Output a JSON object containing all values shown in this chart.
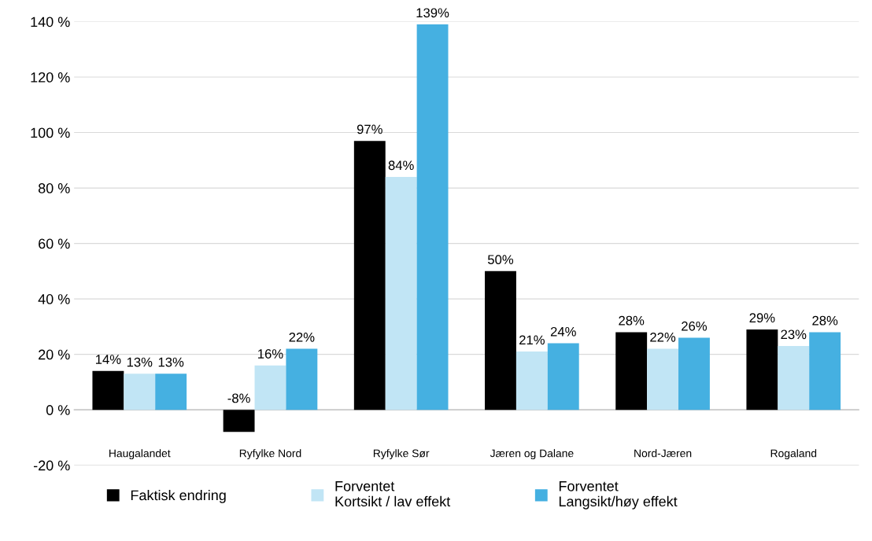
{
  "chart_data": {
    "type": "bar",
    "categories": [
      "Haugalandet",
      "Ryfylke Nord",
      "Ryfylke Sør",
      "Jæren og Dalane",
      "Nord-Jæren",
      "Rogaland"
    ],
    "series": [
      {
        "name": "Faktisk endring",
        "color": "#000000",
        "values": [
          14,
          -8,
          97,
          50,
          28,
          29
        ],
        "value_labels": [
          "14%",
          "-8%",
          "97%",
          "50%",
          "28%",
          "29%"
        ]
      },
      {
        "name": "Forventet\nKortsikt / lav effekt",
        "color": "#c1e5f5",
        "values": [
          13,
          16,
          84,
          21,
          22,
          23
        ],
        "value_labels": [
          "13%",
          "16%",
          "84%",
          "21%",
          "22%",
          "23%"
        ]
      },
      {
        "name": "Forventet\nLangsikt/høy effekt",
        "color": "#45b0e1",
        "values": [
          13,
          22,
          139,
          24,
          26,
          28
        ],
        "value_labels": [
          "13%",
          "22%",
          "139%",
          "24%",
          "26%",
          "28%"
        ]
      }
    ],
    "ylim": [
      -20,
      140
    ],
    "yticks": [
      {
        "value": -20,
        "label": "-20 %"
      },
      {
        "value": 0,
        "label": "0 %"
      },
      {
        "value": 20,
        "label": "20 %"
      },
      {
        "value": 40,
        "label": "40 %"
      },
      {
        "value": 60,
        "label": "60 %"
      },
      {
        "value": 80,
        "label": "80 %"
      },
      {
        "value": 100,
        "label": "100 %"
      },
      {
        "value": 120,
        "label": "120 %"
      },
      {
        "value": 140,
        "label": "140 %"
      }
    ],
    "grid": "y",
    "legend": "bottom"
  }
}
